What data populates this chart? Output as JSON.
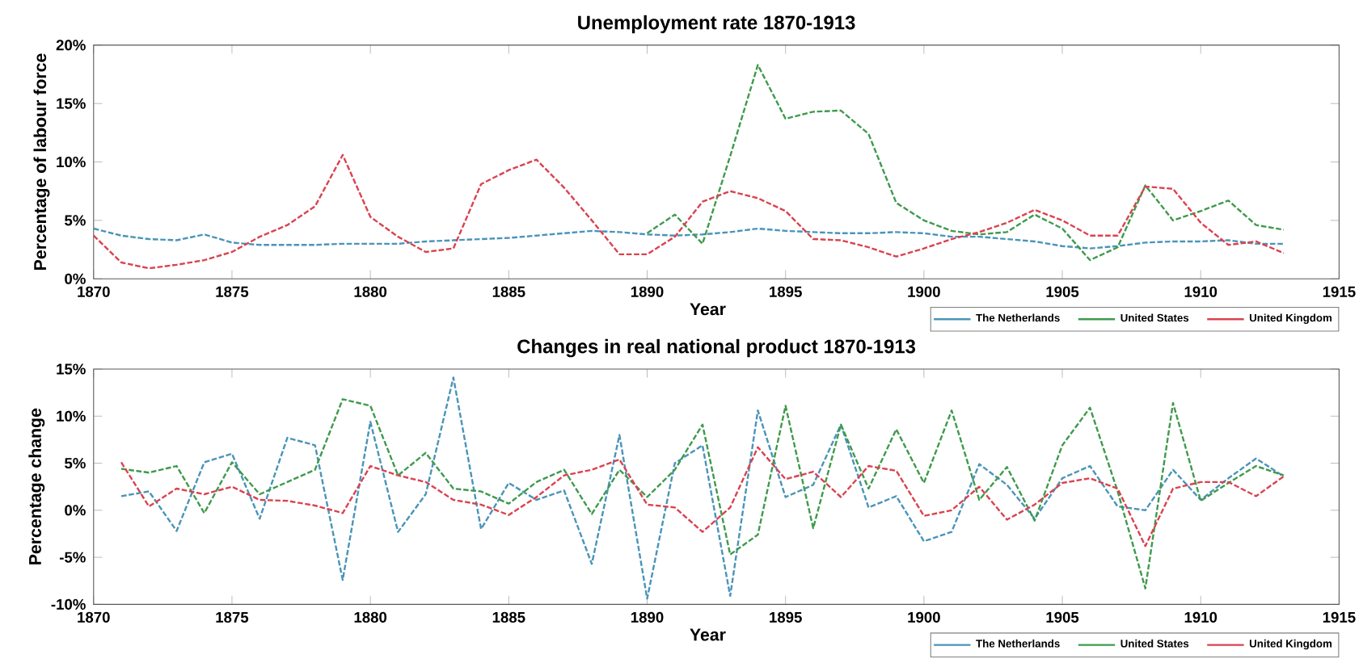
{
  "chart_data": [
    {
      "type": "line",
      "title": "Unemployment rate 1870-1913",
      "xlabel": "Year",
      "ylabel": "Percentage of labour force",
      "x": [
        1870,
        1871,
        1872,
        1873,
        1874,
        1875,
        1876,
        1877,
        1878,
        1879,
        1880,
        1881,
        1882,
        1883,
        1884,
        1885,
        1886,
        1887,
        1888,
        1889,
        1890,
        1891,
        1892,
        1893,
        1894,
        1895,
        1896,
        1897,
        1898,
        1899,
        1900,
        1901,
        1902,
        1903,
        1904,
        1905,
        1906,
        1907,
        1908,
        1909,
        1910,
        1911,
        1912,
        1913
      ],
      "series": [
        {
          "name": "The Netherlands",
          "color": "#4a94b8",
          "values": [
            4.3,
            3.7,
            3.4,
            3.3,
            3.8,
            3.1,
            2.9,
            2.9,
            2.9,
            3.0,
            3.0,
            3.0,
            3.2,
            3.3,
            3.4,
            3.5,
            3.7,
            3.9,
            4.1,
            4.0,
            3.8,
            3.7,
            3.8,
            4.0,
            4.3,
            4.1,
            4.0,
            3.9,
            3.9,
            4.0,
            3.9,
            3.6,
            3.6,
            3.4,
            3.2,
            2.8,
            2.6,
            2.8,
            3.1,
            3.2,
            3.2,
            3.3,
            3.0,
            3.0
          ]
        },
        {
          "name": "United States",
          "color": "#3f9a4c",
          "values": [
            null,
            null,
            null,
            null,
            null,
            null,
            null,
            null,
            null,
            null,
            null,
            null,
            null,
            null,
            null,
            null,
            null,
            null,
            null,
            null,
            3.9,
            5.5,
            3.0,
            10.5,
            18.3,
            13.7,
            14.3,
            14.4,
            12.4,
            6.5,
            5.0,
            4.1,
            3.8,
            4.0,
            5.5,
            4.3,
            1.6,
            2.7,
            8.0,
            5.0,
            5.8,
            6.7,
            4.6,
            4.2
          ]
        },
        {
          "name": "United Kingdom",
          "color": "#d9434f",
          "values": [
            3.7,
            1.4,
            0.9,
            1.2,
            1.6,
            2.3,
            3.6,
            4.6,
            6.2,
            10.6,
            5.3,
            3.6,
            2.3,
            2.6,
            8.1,
            9.3,
            10.2,
            7.8,
            5.0,
            2.1,
            2.1,
            3.6,
            6.6,
            7.5,
            6.9,
            5.8,
            3.4,
            3.3,
            2.7,
            1.9,
            2.6,
            3.4,
            4.0,
            4.8,
            5.9,
            5.0,
            3.7,
            3.7,
            7.9,
            7.7,
            4.8,
            2.9,
            3.2,
            2.2
          ]
        }
      ],
      "xlim": [
        1870,
        1915
      ],
      "xticks": [
        1870,
        1875,
        1880,
        1885,
        1890,
        1895,
        1900,
        1905,
        1910,
        1915
      ],
      "ylim": [
        0,
        20
      ],
      "yticks": [
        {
          "value": 0,
          "label": "0%"
        },
        {
          "value": 5,
          "label": "5%"
        },
        {
          "value": 10,
          "label": "10%"
        },
        {
          "value": 15,
          "label": "15%"
        },
        {
          "value": 20,
          "label": "20%"
        }
      ],
      "legend": "bottom right",
      "line_style": "dashed",
      "marker": "none",
      "grid": false
    },
    {
      "type": "line",
      "title": "Changes in real national product 1870-1913",
      "xlabel": "Year",
      "ylabel": "Percentage change",
      "x": [
        1871,
        1872,
        1873,
        1874,
        1875,
        1876,
        1877,
        1878,
        1879,
        1880,
        1881,
        1882,
        1883,
        1884,
        1885,
        1886,
        1887,
        1888,
        1889,
        1890,
        1891,
        1892,
        1893,
        1894,
        1895,
        1896,
        1897,
        1898,
        1899,
        1900,
        1901,
        1902,
        1903,
        1904,
        1905,
        1906,
        1907,
        1908,
        1909,
        1910,
        1911,
        1912,
        1913
      ],
      "series": [
        {
          "name": "The Netherlands",
          "color": "#4a94b8",
          "values": [
            1.5,
            2.0,
            -2.2,
            5.1,
            6.0,
            -0.9,
            7.7,
            6.9,
            -7.4,
            9.4,
            -2.3,
            1.7,
            14.1,
            -2.0,
            2.9,
            1.1,
            2.1,
            -5.7,
            8.0,
            -9.4,
            5.0,
            6.9,
            -9.1,
            10.6,
            1.4,
            2.7,
            9.1,
            0.3,
            1.5,
            -3.3,
            -2.3,
            4.9,
            2.7,
            -0.9,
            3.4,
            4.7,
            0.4,
            0.0,
            4.3,
            1.1,
            3.4,
            5.5,
            3.6
          ]
        },
        {
          "name": "United States",
          "color": "#3f9a4c",
          "values": [
            4.4,
            4.0,
            4.7,
            -0.3,
            5.1,
            1.7,
            3.0,
            4.3,
            11.8,
            11.1,
            3.7,
            6.1,
            2.3,
            2.0,
            0.7,
            3.0,
            4.3,
            -0.4,
            4.3,
            1.4,
            4.3,
            9.1,
            -4.7,
            -2.6,
            11.1,
            -1.9,
            9.1,
            2.3,
            8.6,
            2.9,
            10.6,
            1.1,
            4.6,
            -1.1,
            6.9,
            10.9,
            2.0,
            -8.3,
            11.4,
            1.0,
            2.9,
            4.7,
            3.7
          ]
        },
        {
          "name": "United Kingdom",
          "color": "#d9434f",
          "values": [
            5.1,
            0.4,
            2.3,
            1.7,
            2.5,
            1.1,
            1.0,
            0.5,
            -0.3,
            4.7,
            3.7,
            3.0,
            1.1,
            0.6,
            -0.5,
            1.4,
            3.7,
            4.3,
            5.4,
            0.6,
            0.3,
            -2.3,
            0.3,
            6.7,
            3.3,
            4.1,
            1.4,
            4.7,
            4.2,
            -0.6,
            0.0,
            2.5,
            -1.0,
            0.6,
            2.9,
            3.4,
            2.3,
            -3.8,
            2.3,
            3.0,
            3.0,
            1.5,
            3.6
          ]
        }
      ],
      "xlim": [
        1870,
        1915
      ],
      "xticks": [
        1870,
        1875,
        1880,
        1885,
        1890,
        1895,
        1900,
        1905,
        1910,
        1915
      ],
      "ylim": [
        -10,
        15
      ],
      "yticks": [
        {
          "value": -10,
          "label": "-10%"
        },
        {
          "value": -5,
          "label": "-5%"
        },
        {
          "value": 0,
          "label": "0%"
        },
        {
          "value": 5,
          "label": "5%"
        },
        {
          "value": 10,
          "label": "10%"
        },
        {
          "value": 15,
          "label": "15%"
        }
      ],
      "legend": "bottom right",
      "line_style": "dashed",
      "marker": "none",
      "grid": false
    }
  ]
}
